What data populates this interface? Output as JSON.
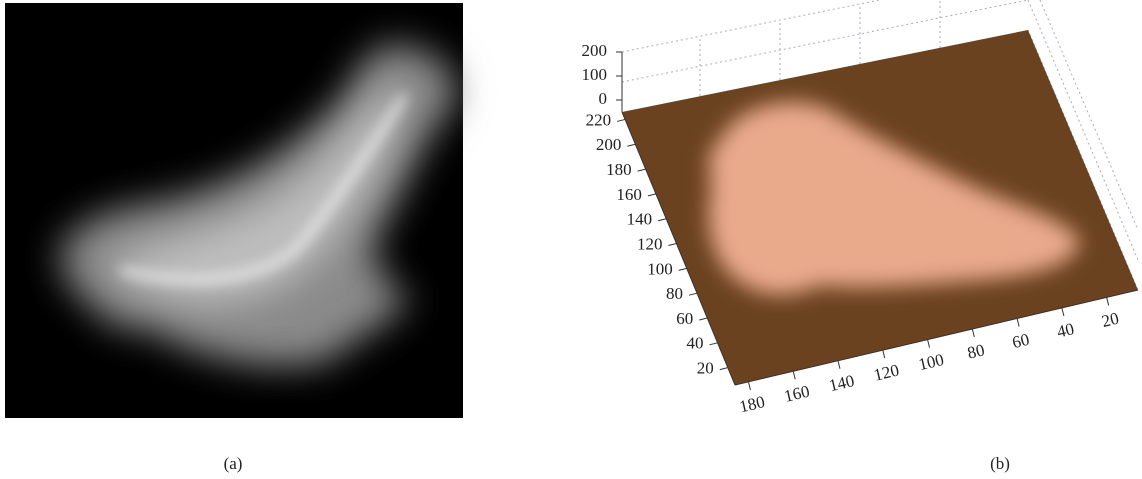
{
  "panels": [
    {
      "caption": "(a)"
    },
    {
      "caption": "(b)",
      "z_ticks": [
        200,
        100,
        0
      ],
      "y_ticks": [
        220,
        200,
        180,
        160,
        140,
        120,
        100,
        80,
        60,
        40,
        20
      ],
      "x_ticks": [
        180,
        160,
        140,
        120,
        100,
        80,
        60,
        40,
        20
      ]
    }
  ]
}
